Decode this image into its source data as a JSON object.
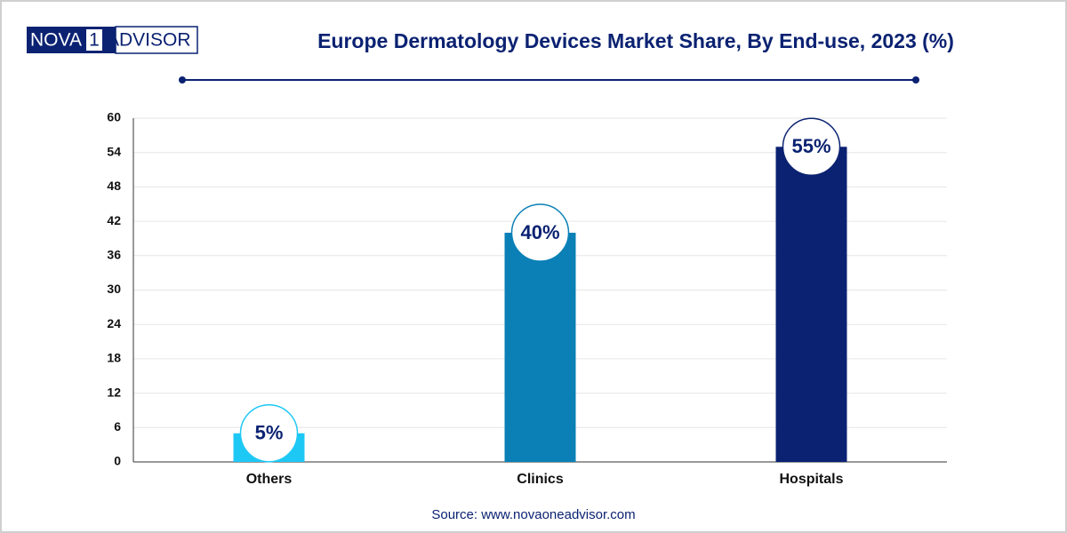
{
  "logo": {
    "left": "NOVA",
    "middle": "1",
    "right": "ADVISOR"
  },
  "chart_data": {
    "type": "bar",
    "title": "Europe Dermatology Devices Market Share, By End-use, 2023 (%)",
    "categories": [
      "Others",
      "Clinics",
      "Hospitals"
    ],
    "values": [
      5,
      40,
      55
    ],
    "value_labels": [
      "5%",
      "40%",
      "55%"
    ],
    "colors": [
      "#1ec8f5",
      "#0a80b6",
      "#0b2272"
    ],
    "ylim": [
      0,
      60
    ],
    "yticks": [
      0,
      6,
      12,
      18,
      24,
      30,
      36,
      42,
      48,
      54,
      60
    ],
    "grid": true,
    "source": "Source: www.novaoneadvisor.com"
  }
}
